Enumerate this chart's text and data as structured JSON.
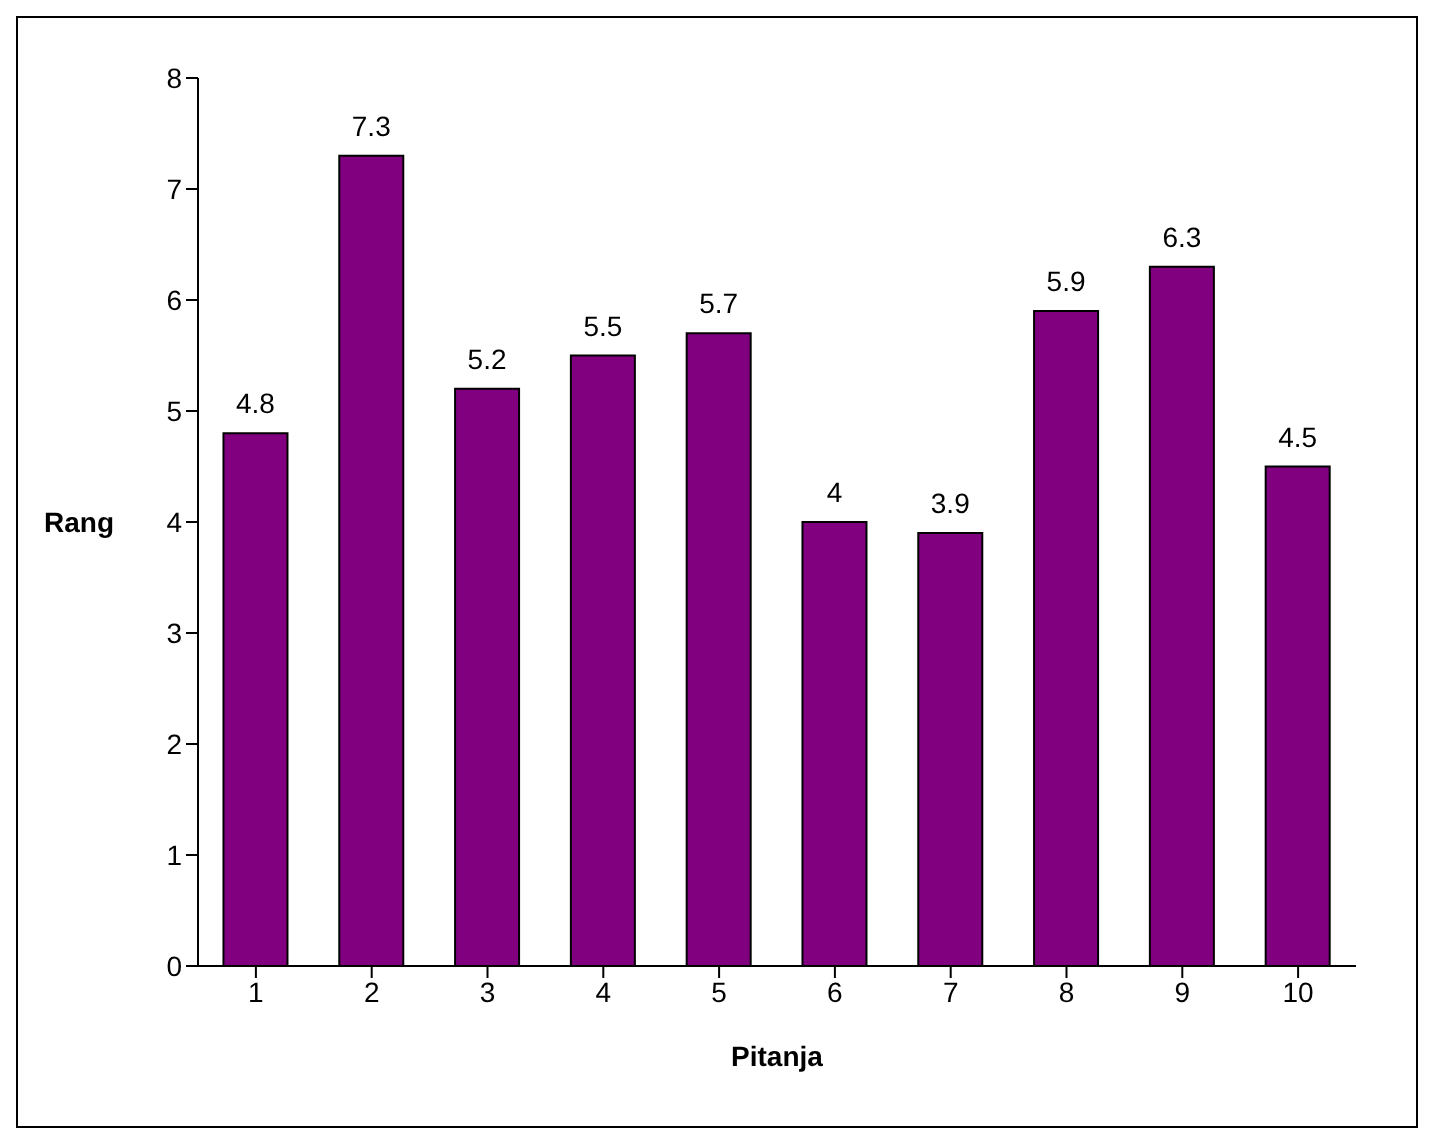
{
  "chart_data": {
    "type": "bar",
    "xlabel": "Pitanja",
    "ylabel": "Rang",
    "categories": [
      "1",
      "2",
      "3",
      "4",
      "5",
      "6",
      "7",
      "8",
      "9",
      "10"
    ],
    "values": [
      4.8,
      7.3,
      5.2,
      5.5,
      5.7,
      4,
      3.9,
      5.9,
      6.3,
      4.5
    ],
    "color": "#800080",
    "ylim": [
      0,
      8
    ],
    "yticks": [
      0,
      1,
      2,
      3,
      4,
      5,
      6,
      7,
      8
    ],
    "grid": false,
    "legend": false,
    "data_labels": true
  }
}
